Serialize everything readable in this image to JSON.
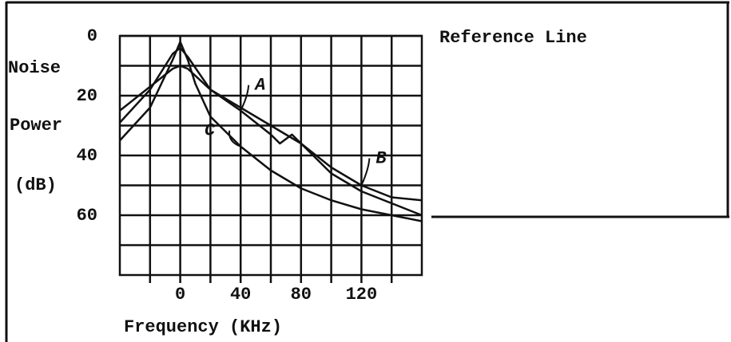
{
  "chart_data": {
    "type": "line",
    "y_label_lines": [
      "Noise",
      "Power",
      "(dB)"
    ],
    "x_label": "Frequency (KHz)",
    "reference_label": "Reference Line",
    "xlim": [
      -40,
      160
    ],
    "ylim": [
      0,
      80
    ],
    "y_inverted": true,
    "xticks": [
      0,
      40,
      80,
      120
    ],
    "yticks": [
      0,
      20,
      40,
      60
    ],
    "xgrid": [
      -20,
      20,
      60,
      100,
      140
    ],
    "ygrid": [
      10,
      30,
      50,
      70
    ],
    "grid": true,
    "series": [
      {
        "name": "A",
        "color": "#111111",
        "x": [
          -40,
          -20,
          -5,
          0,
          5,
          20,
          40,
          60,
          66,
          74,
          80,
          100,
          120,
          140,
          160
        ],
        "values": [
          29,
          18,
          6,
          4,
          7,
          18,
          25,
          33,
          36,
          33,
          36,
          46,
          52,
          56,
          60
        ]
      },
      {
        "name": "B",
        "color": "#111111",
        "x": [
          -40,
          -20,
          -5,
          0,
          5,
          20,
          40,
          80,
          100,
          120,
          140,
          160
        ],
        "values": [
          25,
          17,
          11,
          10,
          11,
          18,
          24,
          36,
          44,
          50,
          54,
          55
        ]
      },
      {
        "name": "C",
        "color": "#111111",
        "x": [
          -40,
          -20,
          -5,
          0,
          5,
          10,
          20,
          40,
          60,
          80,
          100,
          120,
          140,
          160
        ],
        "values": [
          35,
          24,
          8,
          2,
          8,
          16,
          27,
          37,
          45,
          51,
          55,
          58,
          60,
          62
        ]
      }
    ]
  }
}
